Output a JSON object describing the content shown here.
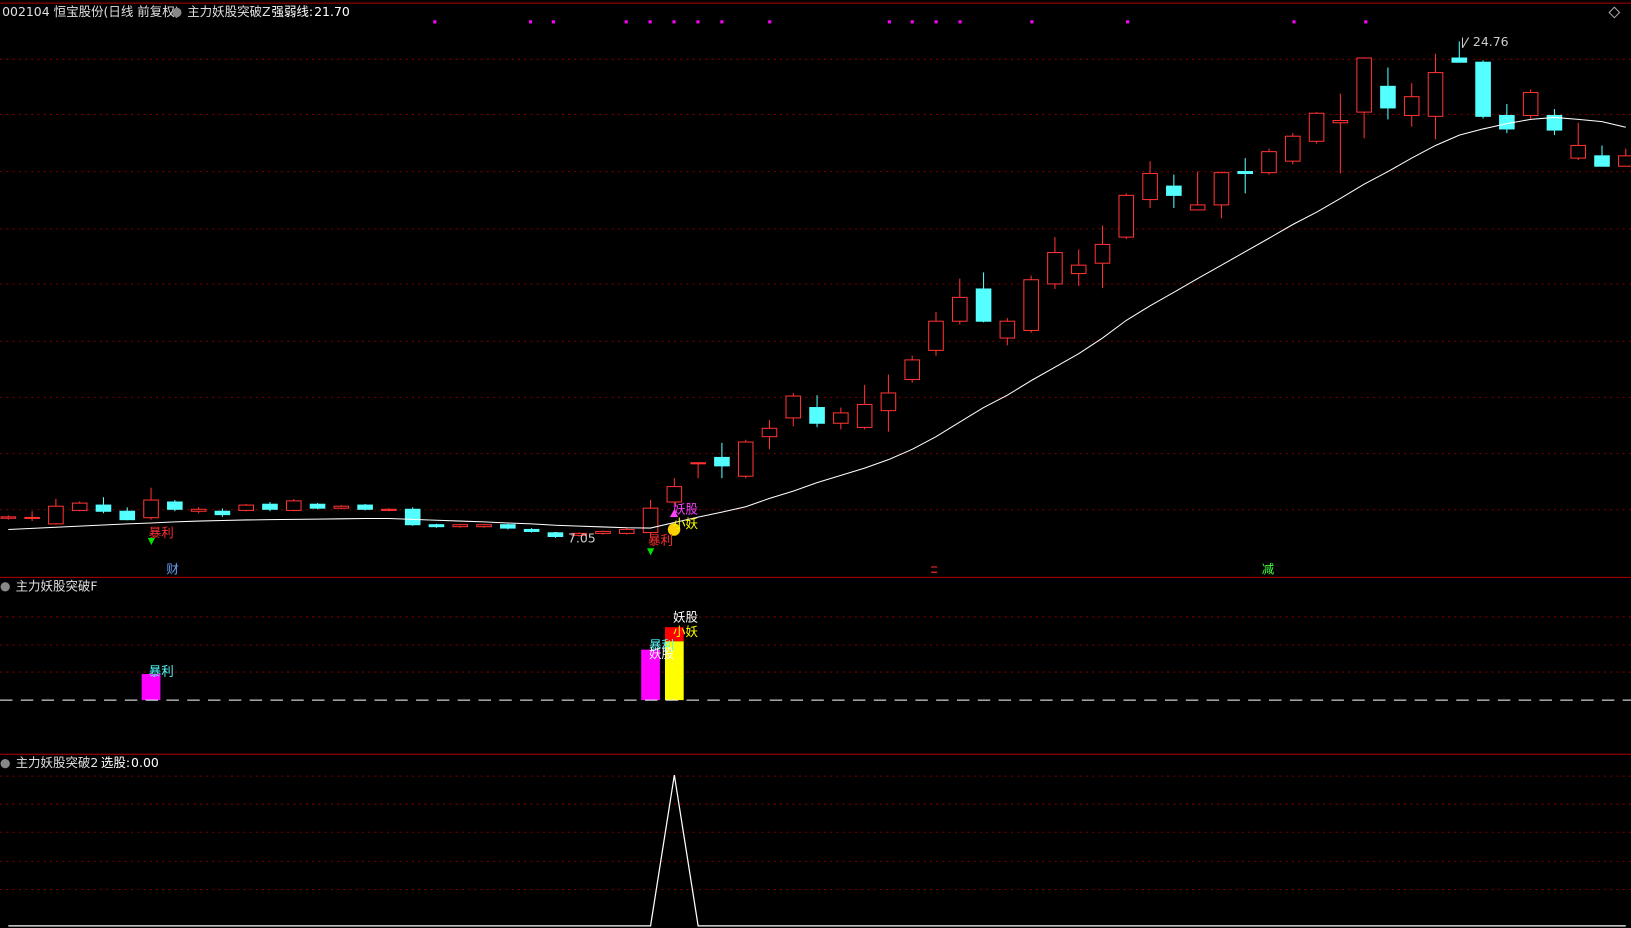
{
  "header": {
    "symbol": "002104 恒宝股份(日线 前复权)"
  },
  "chart_data": [
    {
      "type": "candlestick",
      "title": "主力妖股突破Z",
      "readout": {
        "name": "强弱线:",
        "value_label": "21.70"
      },
      "ylim": [
        5.64,
        26.24
      ],
      "up_color": "#ff3232",
      "down_color": "#54ffff",
      "open": [
        7.75,
        7.78,
        7.55,
        8.03,
        8.22,
        8.0,
        7.77,
        8.33,
        8.0,
        8.0,
        8.03,
        8.25,
        8.03,
        8.25,
        8.11,
        8.22,
        8.03,
        8.07,
        7.52,
        7.45,
        7.45,
        7.52,
        7.35,
        7.23,
        7.14,
        7.21,
        7.21,
        7.24,
        8.33,
        9.73,
        9.92,
        9.25,
        10.66,
        11.33,
        11.7,
        11.14,
        10.99,
        11.59,
        12.7,
        13.74,
        14.78,
        15.93,
        14.18,
        14.45,
        16.11,
        16.48,
        16.85,
        17.78,
        19.12,
        19.6,
        18.75,
        18.93,
        20.12,
        20.08,
        20.49,
        21.2,
        21.86,
        22.24,
        23.16,
        22.12,
        22.09,
        24.17,
        24.02,
        22.12,
        22.12,
        22.12,
        20.6,
        20.68,
        20.31
      ],
      "high": [
        7.85,
        8.0,
        8.44,
        8.35,
        8.5,
        8.14,
        8.84,
        8.4,
        8.14,
        8.1,
        8.26,
        8.33,
        8.44,
        8.29,
        8.22,
        8.26,
        8.11,
        8.14,
        7.55,
        7.55,
        7.55,
        7.55,
        7.4,
        7.26,
        7.24,
        7.31,
        7.4,
        8.4,
        9.18,
        9.75,
        10.44,
        10.55,
        11.25,
        12.22,
        12.14,
        11.7,
        12.51,
        12.88,
        13.55,
        15.11,
        16.3,
        16.52,
        14.89,
        16.41,
        17.78,
        17.34,
        18.19,
        19.34,
        20.49,
        20.01,
        20.12,
        20.12,
        20.6,
        20.94,
        21.49,
        22.24,
        22.9,
        24.2,
        23.83,
        23.27,
        24.32,
        24.76,
        24.09,
        22.53,
        23.05,
        22.35,
        21.86,
        21.05,
        20.94
      ],
      "low": [
        7.7,
        7.65,
        7.52,
        8.0,
        7.93,
        7.68,
        7.7,
        8.0,
        7.93,
        7.8,
        8.0,
        8.0,
        8.0,
        8.07,
        8.07,
        8.03,
        8.0,
        7.48,
        7.41,
        7.41,
        7.41,
        7.35,
        7.24,
        7.05,
        7.1,
        7.17,
        7.17,
        7.17,
        8.22,
        9.18,
        9.18,
        9.18,
        10.21,
        11.03,
        11.0,
        10.92,
        10.92,
        10.84,
        12.59,
        13.55,
        14.67,
        14.74,
        13.92,
        14.37,
        15.93,
        16.04,
        15.96,
        17.71,
        18.82,
        18.82,
        18.75,
        18.45,
        19.34,
        20.01,
        20.38,
        21.12,
        20.05,
        21.31,
        21.98,
        21.72,
        21.27,
        24.02,
        22.01,
        21.49,
        22.01,
        21.42,
        20.53,
        20.31,
        20.31
      ],
      "close": [
        7.8,
        7.78,
        8.18,
        8.29,
        8.0,
        7.7,
        8.4,
        8.07,
        8.07,
        7.88,
        8.22,
        8.07,
        8.37,
        8.11,
        8.18,
        8.07,
        8.07,
        7.52,
        7.45,
        7.52,
        7.52,
        7.4,
        7.28,
        7.1,
        7.21,
        7.28,
        7.35,
        8.11,
        8.88,
        9.73,
        9.62,
        10.47,
        10.96,
        12.11,
        11.14,
        11.51,
        11.81,
        12.22,
        13.4,
        14.78,
        15.63,
        14.78,
        14.78,
        16.26,
        17.23,
        16.78,
        17.52,
        19.27,
        20.05,
        19.27,
        18.93,
        20.08,
        20.05,
        20.83,
        21.38,
        22.2,
        21.94,
        24.17,
        22.39,
        22.79,
        23.65,
        24.02,
        22.09,
        21.64,
        22.94,
        21.6,
        21.05,
        20.31,
        20.68
      ],
      "ma": {
        "color": "#ffffff",
        "values": [
          7.35,
          7.39,
          7.43,
          7.47,
          7.51,
          7.55,
          7.58,
          7.62,
          7.65,
          7.67,
          7.69,
          7.7,
          7.71,
          7.72,
          7.73,
          7.74,
          7.74,
          7.71,
          7.68,
          7.65,
          7.62,
          7.58,
          7.55,
          7.5,
          7.47,
          7.44,
          7.41,
          7.4,
          7.6,
          7.79,
          7.97,
          8.16,
          8.46,
          8.72,
          9.02,
          9.28,
          9.54,
          9.84,
          10.21,
          10.66,
          11.18,
          11.7,
          12.14,
          12.66,
          13.14,
          13.62,
          14.18,
          14.81,
          15.33,
          15.81,
          16.3,
          16.78,
          17.26,
          17.74,
          18.23,
          18.67,
          19.16,
          19.67,
          20.12,
          20.6,
          21.05,
          21.42,
          21.64,
          21.83,
          21.98,
          22.05,
          21.98,
          21.9,
          21.7
        ]
      },
      "low_label": {
        "value": 7.05,
        "label": "7.05"
      },
      "high_label": {
        "value": 24.76,
        "label": "24.76"
      },
      "annotations": [
        {
          "text": "暴利",
          "color": "#ff3030"
        },
        {
          "text": "妖股",
          "color": "#ff40ff"
        },
        {
          "text": "小妖",
          "color": "#ffff00"
        },
        {
          "text": "暴利",
          "color": "#ff3030"
        },
        {
          "text": "财",
          "color": "#6aa8ff"
        },
        {
          "text": "减",
          "color": "#40ff40"
        }
      ]
    },
    {
      "type": "bar",
      "title": "主力妖股突破F",
      "ylim": [
        -1.93,
        4.3
      ],
      "stacked": true,
      "series": [
        {
          "color": "#ff00ff",
          "values": [
            null,
            null,
            null,
            null,
            null,
            null,
            0.93,
            null,
            null,
            null,
            null,
            null,
            null,
            null,
            null,
            null,
            null,
            null,
            null,
            null,
            null,
            null,
            null,
            null,
            null,
            null,
            null,
            1.8,
            null,
            null,
            null,
            null,
            null,
            null,
            null,
            null,
            null,
            null,
            null,
            null,
            null,
            null,
            null,
            null,
            null,
            null,
            null,
            null,
            null,
            null,
            null,
            null,
            null,
            null,
            null,
            null,
            null,
            null,
            null,
            null,
            null,
            null,
            null,
            null,
            null,
            null,
            null,
            null,
            null
          ]
        },
        {
          "color": "#ffff00",
          "values": [
            null,
            null,
            null,
            null,
            null,
            null,
            null,
            null,
            null,
            null,
            null,
            null,
            null,
            null,
            null,
            null,
            null,
            null,
            null,
            null,
            null,
            null,
            null,
            null,
            null,
            null,
            null,
            null,
            2.1,
            null,
            null,
            null,
            null,
            null,
            null,
            null,
            null,
            null,
            null,
            null,
            null,
            null,
            null,
            null,
            null,
            null,
            null,
            null,
            null,
            null,
            null,
            null,
            null,
            null,
            null,
            null,
            null,
            null,
            null,
            null,
            null,
            null,
            null,
            null,
            null,
            null,
            null,
            null,
            null
          ]
        },
        {
          "color": "#ff0000",
          "values": [
            null,
            null,
            null,
            null,
            null,
            null,
            null,
            null,
            null,
            null,
            null,
            null,
            null,
            null,
            null,
            null,
            null,
            null,
            null,
            null,
            null,
            null,
            null,
            null,
            null,
            null,
            null,
            null,
            0.5,
            null,
            null,
            null,
            null,
            null,
            null,
            null,
            null,
            null,
            null,
            null,
            null,
            null,
            null,
            null,
            null,
            null,
            null,
            null,
            null,
            null,
            null,
            null,
            null,
            null,
            null,
            null,
            null,
            null,
            null,
            null,
            null,
            null,
            null,
            null,
            null,
            null,
            null,
            null,
            null
          ]
        }
      ],
      "annotations": [
        {
          "text": "暴利",
          "color": "#54ffff"
        },
        {
          "text": "暴利",
          "color": "#54ffff"
        },
        {
          "text": "妖股",
          "color": "#ffffff"
        },
        {
          "text": "妖股",
          "color": "#ffffff"
        },
        {
          "text": "小妖",
          "color": "#ffff00"
        }
      ]
    },
    {
      "type": "line",
      "title": "主力妖股突破2",
      "readout": {
        "name": "选股:",
        "value_label": "0.00"
      },
      "ylim": [
        -0.014,
        1.124
      ],
      "color": "#ffffff",
      "values": [
        0,
        0,
        0,
        0,
        0,
        0,
        0,
        0,
        0,
        0,
        0,
        0,
        0,
        0,
        0,
        0,
        0,
        0,
        0,
        0,
        0,
        0,
        0,
        0,
        0,
        0,
        0,
        0,
        1,
        0,
        0,
        0,
        0,
        0,
        0,
        0,
        0,
        0,
        0,
        0,
        0,
        0,
        0,
        0,
        0,
        0,
        0,
        0,
        0,
        0,
        0,
        0,
        0,
        0,
        0,
        0,
        0,
        0,
        0,
        0,
        0,
        0,
        0,
        0,
        0,
        0,
        0,
        0,
        0
      ]
    }
  ]
}
